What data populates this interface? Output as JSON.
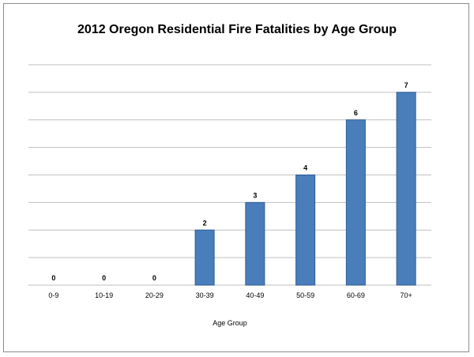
{
  "chart_data": {
    "type": "bar",
    "title": "2012 Oregon Residential Fire Fatalities by Age Group",
    "xlabel": "Age Group",
    "ylabel": "",
    "categories": [
      "0-9",
      "10-19",
      "20-29",
      "30-39",
      "40-49",
      "50-59",
      "60-69",
      "70+"
    ],
    "values": [
      0,
      0,
      0,
      2,
      3,
      4,
      6,
      7
    ],
    "ylim": [
      0,
      8
    ],
    "grid": true,
    "legend": "none",
    "colors": {
      "bar": "#4a7ebb",
      "bar_edge": "#2e5b94",
      "grid": "#bfbfbf"
    }
  }
}
